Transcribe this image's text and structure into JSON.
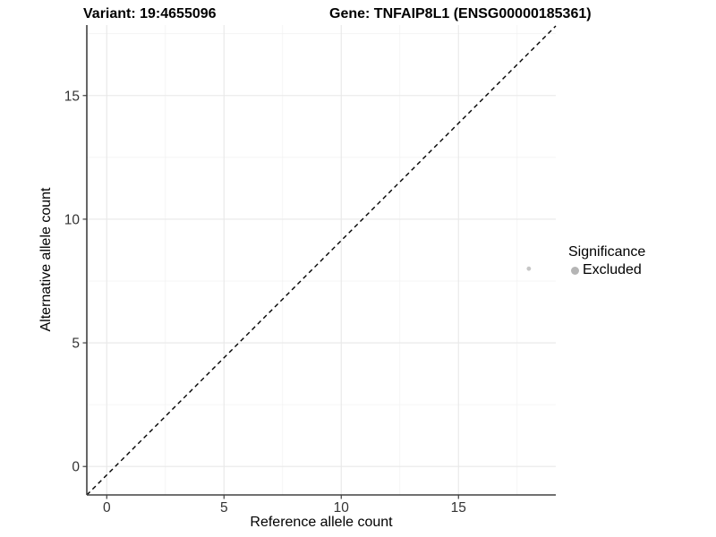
{
  "titles": {
    "variant": "Variant: 19:4655096",
    "gene": "Gene: TNFAIP8L1 (ENSG00000185361)"
  },
  "chart_data": {
    "type": "scatter",
    "xlabel": "Reference allele count",
    "ylabel": "Alternative allele count",
    "x_ticks": [
      0,
      5,
      10,
      15
    ],
    "y_ticks": [
      0,
      5,
      10,
      15
    ],
    "x_minor_ticks": [
      2.5,
      7.5,
      12.5,
      17.5
    ],
    "y_minor_ticks": [
      2.5,
      7.5,
      12.5,
      17.5
    ],
    "xlim": [
      -0.85,
      19.15
    ],
    "ylim": [
      -1.15,
      17.85
    ],
    "grid": true,
    "points": [
      {
        "x": 18,
        "y": 8,
        "series": "Excluded"
      }
    ],
    "reference_line": {
      "slope": 1,
      "intercept": 0,
      "style": "dashed"
    },
    "legend": {
      "title": "Significance",
      "position": "right",
      "items": [
        {
          "label": "Excluded",
          "color": "#b5b5b5"
        }
      ]
    }
  },
  "colors": {
    "point": "#c6c6c6",
    "legend_point": "#b5b5b5",
    "grid_major": "#e8e8e8",
    "grid_minor": "#f2f2f2",
    "axis_line": "#404040",
    "tick_label": "#333333",
    "reference_line": "#000000",
    "background": "#ffffff"
  }
}
